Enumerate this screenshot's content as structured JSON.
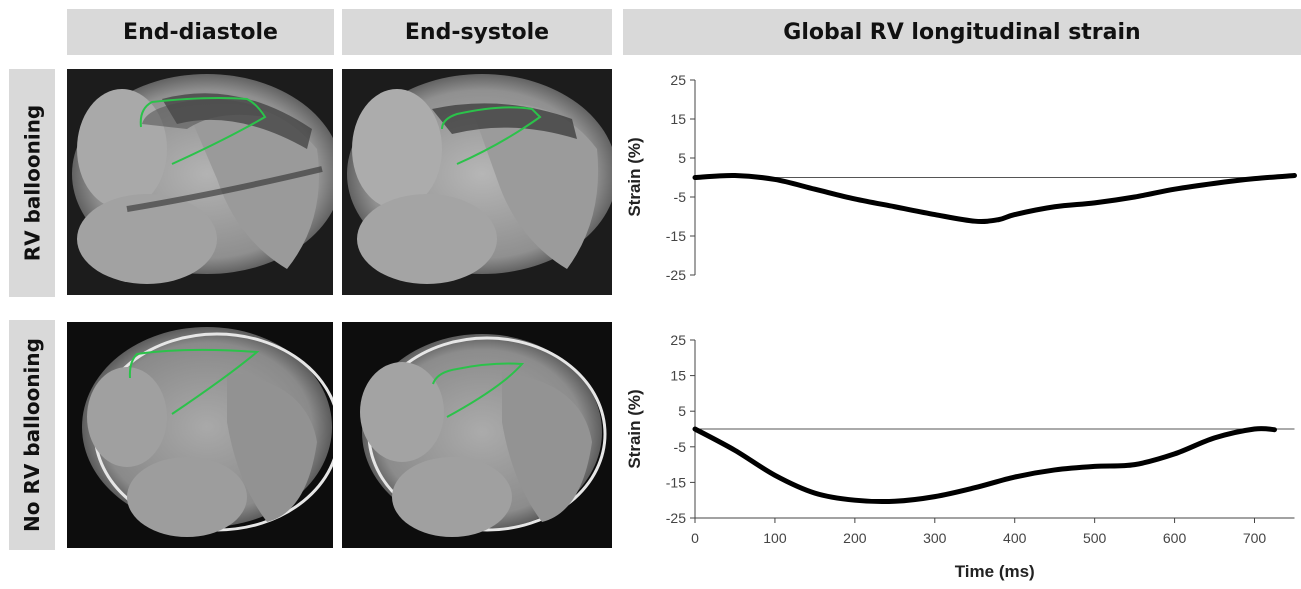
{
  "headers": {
    "end_diastole": "End-diastole",
    "end_systole": "End-systole",
    "strain": "Global RV longitudinal strain"
  },
  "row_labels": {
    "top": "RV ballooning",
    "bottom": "No RV ballooning"
  },
  "colors": {
    "header_bg": "#d9d9d9",
    "contour": "#2bc24a",
    "curve": "#000000"
  },
  "chart_data": [
    {
      "type": "line",
      "title": "",
      "xlabel": "",
      "ylabel": "Strain (%)",
      "xlim": [
        0,
        750
      ],
      "ylim": [
        -25,
        25
      ],
      "yticks": [
        25,
        15,
        5,
        -5,
        -15,
        -25
      ],
      "grid": false,
      "series": [
        {
          "x": [
            0,
            50,
            100,
            150,
            200,
            250,
            300,
            350,
            380,
            400,
            450,
            500,
            550,
            600,
            650,
            700,
            750
          ],
          "values": [
            0,
            0.5,
            -0.5,
            -3,
            -5.5,
            -7.5,
            -9.5,
            -11.2,
            -10.8,
            -9.5,
            -7.5,
            -6.5,
            -5,
            -3,
            -1.5,
            -0.3,
            0.5
          ]
        }
      ]
    },
    {
      "type": "line",
      "title": "",
      "xlabel": "Time (ms)",
      "ylabel": "Strain (%)",
      "xlim": [
        0,
        750
      ],
      "ylim": [
        -25,
        25
      ],
      "yticks": [
        25,
        15,
        5,
        -5,
        -15,
        -25
      ],
      "xticks": [
        0,
        100,
        200,
        300,
        400,
        500,
        600,
        700
      ],
      "grid": false,
      "series": [
        {
          "x": [
            0,
            50,
            100,
            150,
            200,
            250,
            300,
            350,
            400,
            450,
            500,
            550,
            600,
            650,
            700,
            725
          ],
          "values": [
            0,
            -6,
            -13,
            -18,
            -20,
            -20.3,
            -19,
            -16.5,
            -13.5,
            -11.5,
            -10.5,
            -10,
            -7,
            -2.5,
            0,
            -0.2
          ]
        }
      ]
    }
  ]
}
